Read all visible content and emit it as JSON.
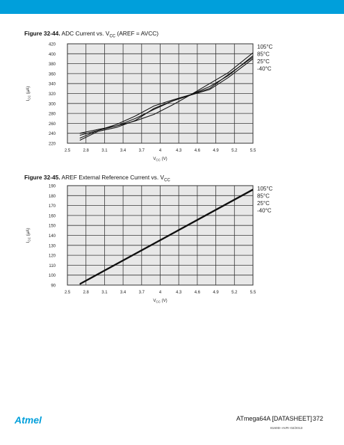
{
  "header": {
    "bar_color": "#009fdb"
  },
  "figures": [
    {
      "label": "Figure 32-44.",
      "title_pre": "ADC Current vs. V",
      "title_sub": "CC",
      "title_post": " (AREF = AVCC)",
      "chart_data": {
        "type": "line",
        "xlabel": "V_CC (V)",
        "ylabel": "I_CC (µA)",
        "xlim": [
          2.5,
          5.5
        ],
        "ylim": [
          220,
          420
        ],
        "xticks": [
          "2.5",
          "2.8",
          "3.1",
          "3.4",
          "3.7",
          "4",
          "4.3",
          "4.6",
          "4.9",
          "5.2",
          "5.5"
        ],
        "yticks": [
          "220",
          "240",
          "260",
          "280",
          "300",
          "320",
          "340",
          "360",
          "380",
          "400",
          "420"
        ],
        "grid": true,
        "legend": [
          "105°C",
          "85°C",
          "25°C",
          "-40°C"
        ],
        "legend_position": "right",
        "x": [
          2.7,
          3.0,
          3.3,
          3.6,
          3.9,
          4.2,
          4.5,
          4.8,
          5.1,
          5.5
        ],
        "series": [
          {
            "name": "105°C",
            "values": [
              240,
              248,
              255,
              265,
              278,
              297,
              318,
              340,
              362,
              402
            ]
          },
          {
            "name": "85°C",
            "values": [
              236,
              246,
              255,
              270,
              288,
              305,
              318,
              334,
              356,
              396
            ]
          },
          {
            "name": "25°C",
            "values": [
              230,
              246,
              258,
              275,
              295,
              307,
              318,
              330,
              358,
              393
            ]
          },
          {
            "name": "-40°C",
            "values": [
              226,
              244,
              252,
              266,
              290,
              305,
              317,
              328,
              352,
              390
            ]
          }
        ]
      }
    },
    {
      "label": "Figure 32-45.",
      "title_pre": "AREF External Reference Current vs. V",
      "title_sub": "CC",
      "title_post": "",
      "chart_data": {
        "type": "line",
        "xlabel": "V_CC (V)",
        "ylabel": "I_CC (µA)",
        "xlim": [
          2.5,
          5.5
        ],
        "ylim": [
          90,
          190
        ],
        "xticks": [
          "2.5",
          "2.8",
          "3.1",
          "3.4",
          "3.7",
          "4",
          "4.3",
          "4.6",
          "4.9",
          "5.2",
          "5.5"
        ],
        "yticks": [
          "90",
          "100",
          "110",
          "120",
          "130",
          "140",
          "150",
          "160",
          "170",
          "180",
          "190"
        ],
        "grid": true,
        "legend": [
          "105°C",
          "85°C",
          "25°C",
          "-40°C"
        ],
        "legend_position": "right",
        "x": [
          2.7,
          5.5
        ],
        "series": [
          {
            "name": "105°C",
            "values": [
              91.5,
              186.5
            ]
          },
          {
            "name": "85°C",
            "values": [
              91.2,
              186.2
            ]
          },
          {
            "name": "25°C",
            "values": [
              90.9,
              185.9
            ]
          },
          {
            "name": "-40°C",
            "values": [
              90.6,
              185.6
            ]
          }
        ]
      }
    }
  ],
  "footer": {
    "document": "ATmega64A [DATASHEET]",
    "page": "372",
    "revision": "8160D–AVR–02/2013",
    "logo": "Atmel"
  }
}
